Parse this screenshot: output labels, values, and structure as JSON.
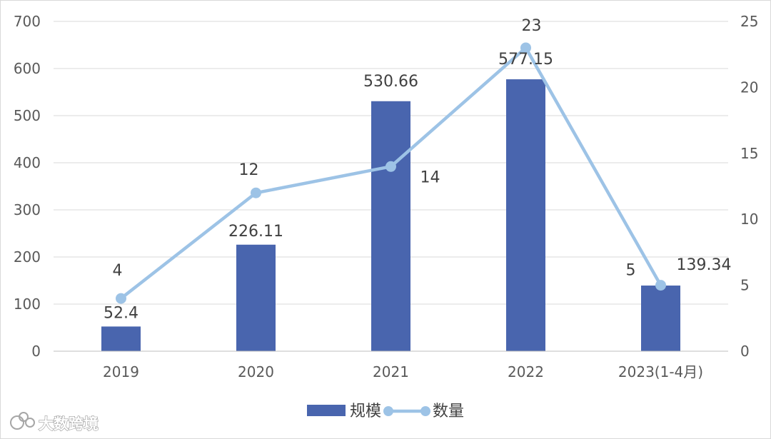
{
  "chart_data": {
    "type": "bar",
    "categories": [
      "2019",
      "2020",
      "2021",
      "2022",
      "2023(1-4月)"
    ],
    "series": [
      {
        "name": "规模",
        "type": "bar",
        "axis": "left",
        "values": [
          52.4,
          226.11,
          530.66,
          577.15,
          139.34
        ],
        "labels": [
          "52.4",
          "226.11",
          "530.66",
          "577.15",
          "139.34"
        ],
        "color": "#4965AE"
      },
      {
        "name": "数量",
        "type": "line",
        "axis": "right",
        "values": [
          4,
          12,
          14,
          23,
          5
        ],
        "labels": [
          "4",
          "12",
          "14",
          "23",
          "5"
        ],
        "color": "#9DC3E6"
      }
    ],
    "ylim_left": [
      0,
      700
    ],
    "yticks_left": [
      "0",
      "100",
      "200",
      "300",
      "400",
      "500",
      "600",
      "700"
    ],
    "ylim_right": [
      0,
      25
    ],
    "yticks_right": [
      "0",
      "5",
      "10",
      "15",
      "20",
      "25"
    ],
    "grid": true,
    "legend_position": "bottom"
  },
  "watermark": {
    "text": "大数跨境"
  }
}
